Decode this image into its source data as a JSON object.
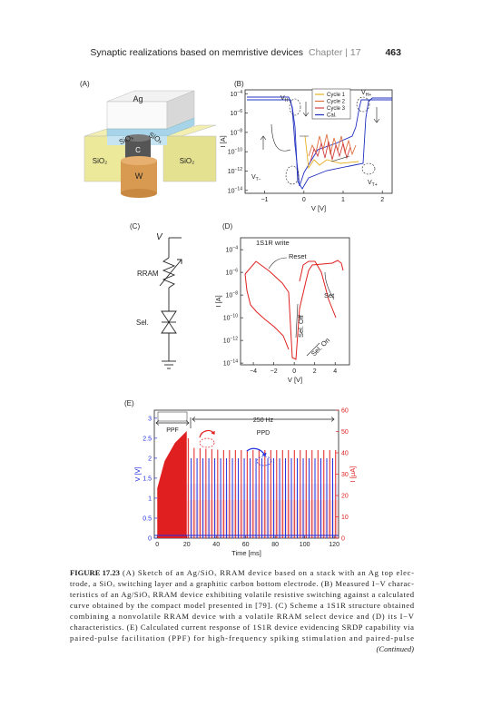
{
  "header": {
    "title": "Synaptic realizations based on memristive devices",
    "chapter": "Chapter | 17",
    "page": "463"
  },
  "figure": {
    "panel_a": {
      "label": "(A)",
      "top": "Ag",
      "layer_left": "SiOₓ",
      "layer_right": "SiOₓ",
      "electrode": "C",
      "oxide_left": "SiO₂",
      "oxide_right": "SiO₂",
      "bottom": "W"
    },
    "panel_b": {
      "label": "(B)",
      "xlabel": "V [V]",
      "ylabel": "I [A]",
      "tick_base": "10",
      "xlim": [
        -1.5,
        2.25
      ],
      "xticks": [
        {
          "value": -1,
          "label": "−1"
        },
        0,
        1,
        2
      ],
      "ylim": [
        -14.3,
        -3.6
      ],
      "yticks": [
        {
          "value": -4,
          "label": "−4"
        },
        {
          "value": -6,
          "label": "−6"
        },
        {
          "value": -8,
          "label": "−8"
        },
        {
          "value": -10,
          "label": "−10"
        },
        {
          "value": -12,
          "label": "−12"
        },
        {
          "value": -14,
          "label": "−14"
        }
      ],
      "legend": [
        {
          "name": "Cycle 1",
          "color": "#e8b020"
        },
        {
          "name": "Cycle 2",
          "color": "#e07040"
        },
        {
          "name": "Cycle 3",
          "color": "#d04040"
        },
        {
          "name": "Cal.",
          "color": "#2030c0"
        }
      ],
      "annotations": [
        {
          "main": "V",
          "sub": "H−"
        },
        {
          "main": "V",
          "sub": "H+"
        },
        {
          "main": "V",
          "sub": "T−"
        },
        {
          "main": "V",
          "sub": "T+"
        }
      ]
    },
    "panel_c": {
      "label": "(C)",
      "source": "V",
      "rram": "RRAM",
      "selector": "Sel."
    },
    "panel_d": {
      "label": "(D)",
      "xlabel": "V [V]",
      "ylabel": "I [A]",
      "tick_base": "10",
      "xlim": [
        -5.25,
        5.4
      ],
      "xticks": [
        {
          "value": -4,
          "label": "−4"
        },
        {
          "value": -2,
          "label": "−2"
        },
        0,
        2,
        4
      ],
      "ylim": [
        -14.15,
        -2.95
      ],
      "yticks": [
        {
          "value": -4,
          "label": "−4"
        },
        {
          "value": -6,
          "label": "−6"
        },
        {
          "value": -8,
          "label": "−8"
        },
        {
          "value": -10,
          "label": "−10"
        },
        {
          "value": -12,
          "label": "−12"
        },
        {
          "value": -14,
          "label": "−14"
        }
      ],
      "legend_title": "1S1R write",
      "annotations": [
        "Reset",
        "Set",
        "Sel. Off",
        "Sel. On"
      ]
    },
    "panel_e": {
      "label": "(E)",
      "xlabel": "Time [ms]",
      "ylabel": "V [V]",
      "y2label": "I [μA]",
      "xlim": [
        -2,
        123
      ],
      "xticks": [
        0,
        20,
        40,
        60,
        80,
        100,
        120
      ],
      "ylim": [
        0,
        3.2
      ],
      "yticks": [
        0,
        0.5,
        1,
        1.5,
        2,
        2.5,
        3
      ],
      "y2lim": [
        0,
        60
      ],
      "y2ticks": [
        0,
        10,
        20,
        30,
        40,
        50,
        60
      ],
      "left_color": "#2030e0",
      "right_color": "#e02020",
      "annotations": [
        "2 kHz",
        "PPF",
        "250 Hz",
        "PPD"
      ]
    }
  },
  "caption": {
    "label": "FIGURE 17.23",
    "lines": [
      "(A) Sketch of an Ag/SiOₓ RRAM device based on a stack with an Ag top elec-",
      "trode, a SiOₓ switching layer and a graphitic carbon bottom electrode. (B) Measured I−V charac-",
      "teristics of an Ag/SiOₓ RRAM device exhibiting volatile resistive switching against a calculated",
      "curve obtained by the compact model presented in [79]. (C) Scheme a 1S1R structure obtained",
      "combining a nonvolatile RRAM device with a volatile RRAM select device and (D) its I−V",
      "characteristics. (E) Calculated current response of 1S1R device evidencing SRDP capability via",
      "paired-pulse facilitation (PPF) for high-frequency spiking stimulation and paired-pulse"
    ],
    "continued": "(Continued)"
  }
}
